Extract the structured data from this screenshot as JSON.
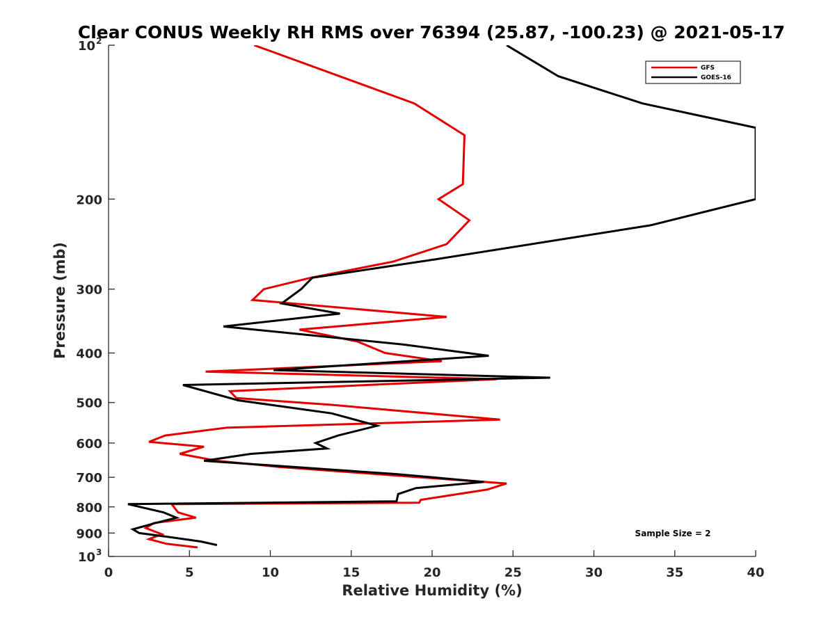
{
  "chart_data": {
    "type": "line",
    "title": "Clear CONUS Weekly RH RMS over 76394 (25.87, -100.23) @ 2021-05-17",
    "xlabel": "Relative Humidity (%)",
    "ylabel": "Pressure (mb)",
    "xlim": [
      0,
      40
    ],
    "ylim": [
      100,
      1000
    ],
    "yscale": "log",
    "yreversed": true,
    "grid": false,
    "legend_position": "top-right",
    "x_ticks": [
      0,
      5,
      10,
      15,
      20,
      25,
      30,
      35,
      40
    ],
    "x_tick_labels": [
      "0",
      "5",
      "10",
      "15",
      "20",
      "25",
      "30",
      "35",
      "40"
    ],
    "y_ticks": [
      {
        "value": 100,
        "label": "10",
        "exp": "2"
      },
      {
        "value": 200,
        "label": "200",
        "exp": ""
      },
      {
        "value": 300,
        "label": "300",
        "exp": ""
      },
      {
        "value": 400,
        "label": "400",
        "exp": ""
      },
      {
        "value": 500,
        "label": "500",
        "exp": ""
      },
      {
        "value": 600,
        "label": "600",
        "exp": ""
      },
      {
        "value": 700,
        "label": "700",
        "exp": ""
      },
      {
        "value": 800,
        "label": "800",
        "exp": ""
      },
      {
        "value": 900,
        "label": "900",
        "exp": ""
      },
      {
        "value": 1000,
        "label": "10",
        "exp": "3"
      }
    ],
    "annotation": "Sample Size = 2",
    "series": [
      {
        "name": "GFS",
        "color": "#e50000",
        "points": [
          [
            9.0,
            100
          ],
          [
            18.9,
            130
          ],
          [
            22.0,
            150
          ],
          [
            21.9,
            187
          ],
          [
            20.4,
            200
          ],
          [
            22.3,
            220
          ],
          [
            20.9,
            245
          ],
          [
            17.6,
            265
          ],
          [
            12.5,
            285
          ],
          [
            9.6,
            300
          ],
          [
            8.9,
            315
          ],
          [
            20.9,
            340
          ],
          [
            11.8,
            360
          ],
          [
            15.4,
            380
          ],
          [
            17.1,
            400
          ],
          [
            20.6,
            415
          ],
          [
            6.0,
            435
          ],
          [
            24.0,
            450
          ],
          [
            7.5,
            475
          ],
          [
            7.9,
            490
          ],
          [
            13.7,
            505
          ],
          [
            24.2,
            540
          ],
          [
            7.3,
            560
          ],
          [
            3.5,
            580
          ],
          [
            2.5,
            597
          ],
          [
            5.9,
            610
          ],
          [
            4.4,
            630
          ],
          [
            6.7,
            650
          ],
          [
            10.5,
            668
          ],
          [
            19.2,
            700
          ],
          [
            24.6,
            720
          ],
          [
            23.4,
            740
          ],
          [
            19.3,
            775
          ],
          [
            19.2,
            785
          ],
          [
            3.9,
            790
          ],
          [
            4.3,
            820
          ],
          [
            5.4,
            840
          ],
          [
            2.8,
            860
          ],
          [
            2.3,
            880
          ],
          [
            3.3,
            905
          ],
          [
            2.5,
            925
          ],
          [
            3.6,
            945
          ],
          [
            5.5,
            960
          ]
        ]
      },
      {
        "name": "GOES-16",
        "color": "#000000",
        "points": [
          [
            24.6,
            100
          ],
          [
            27.8,
            115
          ],
          [
            33.0,
            130
          ],
          [
            40.0,
            145
          ],
          [
            40.0,
            200
          ],
          [
            33.5,
            225
          ],
          [
            20.3,
            262
          ],
          [
            12.6,
            285
          ],
          [
            11.9,
            300
          ],
          [
            10.7,
            320
          ],
          [
            14.3,
            335
          ],
          [
            7.1,
            355
          ],
          [
            18.2,
            385
          ],
          [
            23.5,
            405
          ],
          [
            10.2,
            432
          ],
          [
            27.3,
            447
          ],
          [
            4.6,
            462
          ],
          [
            8.0,
            495
          ],
          [
            13.8,
            525
          ],
          [
            16.6,
            555
          ],
          [
            14.2,
            580
          ],
          [
            12.8,
            600
          ],
          [
            13.5,
            615
          ],
          [
            8.8,
            630
          ],
          [
            5.9,
            650
          ],
          [
            17.8,
            690
          ],
          [
            23.2,
            715
          ],
          [
            19.0,
            735
          ],
          [
            17.9,
            755
          ],
          [
            17.8,
            780
          ],
          [
            1.2,
            790
          ],
          [
            3.4,
            820
          ],
          [
            4.2,
            840
          ],
          [
            2.9,
            860
          ],
          [
            1.5,
            885
          ],
          [
            1.9,
            900
          ],
          [
            3.6,
            915
          ],
          [
            5.7,
            935
          ],
          [
            6.7,
            950
          ]
        ]
      }
    ]
  }
}
